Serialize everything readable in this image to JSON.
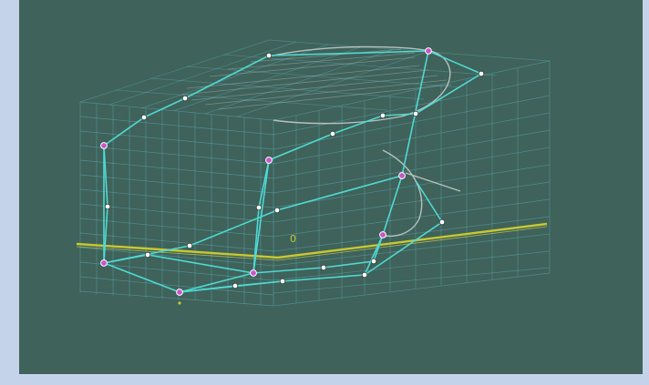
{
  "viewport": {
    "background_color": "#3f625a",
    "frame_color": "#c5d3ea",
    "grid_color": "#5fb3bd",
    "surface_color": "#b8c2c0",
    "control_polygon_color": "#4fd9d3",
    "waterline_color": "#c8c832",
    "control_point_fill": "#ffffff",
    "selected_point_fill": "#c855c8",
    "origin_marker_label": "0",
    "origin_marker_color": "#c8c832"
  }
}
